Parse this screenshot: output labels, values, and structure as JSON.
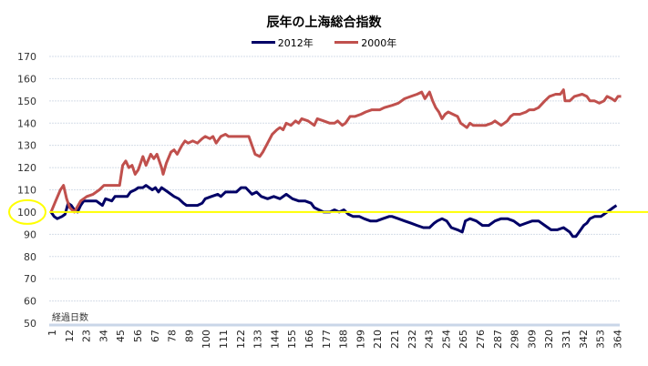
{
  "chart_data": {
    "type": "line",
    "title": "辰年の上海総合指数",
    "xlabel": "経過日数",
    "ylabel": "",
    "ylim": [
      50,
      170
    ],
    "xlim": [
      1,
      367
    ],
    "yticks": [
      170,
      160,
      150,
      140,
      130,
      120,
      110,
      100,
      90,
      80,
      70,
      60,
      50
    ],
    "xticks": [
      1,
      12,
      23,
      34,
      45,
      56,
      67,
      78,
      89,
      100,
      111,
      122,
      133,
      144,
      155,
      166,
      177,
      188,
      199,
      210,
      221,
      232,
      243,
      254,
      265,
      276,
      287,
      298,
      309,
      320,
      331,
      342,
      353,
      364
    ],
    "grid": true,
    "legend_position": "top-center",
    "reference_line": {
      "value": 100,
      "color": "#ffff00",
      "highlighted_tick": "100"
    },
    "series": [
      {
        "name": "2012年",
        "color": "#000066",
        "points": [
          [
            1,
            100
          ],
          [
            3,
            98
          ],
          [
            5,
            97
          ],
          [
            8,
            98
          ],
          [
            10,
            99
          ],
          [
            12,
            104
          ],
          [
            14,
            103
          ],
          [
            16,
            101
          ],
          [
            18,
            100
          ],
          [
            20,
            103
          ],
          [
            22,
            105
          ],
          [
            26,
            105
          ],
          [
            30,
            105
          ],
          [
            34,
            103
          ],
          [
            36,
            106
          ],
          [
            40,
            105
          ],
          [
            42,
            107
          ],
          [
            45,
            107
          ],
          [
            50,
            107
          ],
          [
            52,
            109
          ],
          [
            55,
            110
          ],
          [
            57,
            111
          ],
          [
            60,
            111
          ],
          [
            62,
            112
          ],
          [
            64,
            111
          ],
          [
            66,
            110
          ],
          [
            68,
            111
          ],
          [
            70,
            109
          ],
          [
            72,
            111
          ],
          [
            74,
            110
          ],
          [
            76,
            109
          ],
          [
            80,
            107
          ],
          [
            83,
            106
          ],
          [
            86,
            104
          ],
          [
            88,
            103
          ],
          [
            92,
            103
          ],
          [
            95,
            103
          ],
          [
            98,
            104
          ],
          [
            100,
            106
          ],
          [
            104,
            107
          ],
          [
            108,
            108
          ],
          [
            110,
            107
          ],
          [
            113,
            109
          ],
          [
            116,
            109
          ],
          [
            120,
            109
          ],
          [
            123,
            111
          ],
          [
            126,
            111
          ],
          [
            130,
            108
          ],
          [
            133,
            109
          ],
          [
            136,
            107
          ],
          [
            140,
            106
          ],
          [
            144,
            107
          ],
          [
            148,
            106
          ],
          [
            152,
            108
          ],
          [
            156,
            106
          ],
          [
            160,
            105
          ],
          [
            164,
            105
          ],
          [
            168,
            104
          ],
          [
            170,
            102
          ],
          [
            173,
            101
          ],
          [
            176,
            100
          ],
          [
            180,
            100
          ],
          [
            183,
            101
          ],
          [
            186,
            100
          ],
          [
            189,
            101
          ],
          [
            192,
            99
          ],
          [
            195,
            98
          ],
          [
            199,
            98
          ],
          [
            202,
            97
          ],
          [
            206,
            96
          ],
          [
            210,
            96
          ],
          [
            214,
            97
          ],
          [
            218,
            98
          ],
          [
            220,
            98
          ],
          [
            224,
            97
          ],
          [
            228,
            96
          ],
          [
            232,
            95
          ],
          [
            236,
            94
          ],
          [
            240,
            93
          ],
          [
            244,
            93
          ],
          [
            247,
            95
          ],
          [
            249,
            96
          ],
          [
            252,
            97
          ],
          [
            255,
            96
          ],
          [
            258,
            93
          ],
          [
            262,
            92
          ],
          [
            265,
            91
          ],
          [
            267,
            96
          ],
          [
            270,
            97
          ],
          [
            274,
            96
          ],
          [
            278,
            94
          ],
          [
            282,
            94
          ],
          [
            286,
            96
          ],
          [
            290,
            97
          ],
          [
            294,
            97
          ],
          [
            298,
            96
          ],
          [
            302,
            94
          ],
          [
            306,
            95
          ],
          [
            310,
            96
          ],
          [
            314,
            96
          ],
          [
            318,
            94
          ],
          [
            322,
            92
          ],
          [
            326,
            92
          ],
          [
            330,
            93
          ],
          [
            334,
            91
          ],
          [
            336,
            89
          ],
          [
            338,
            89
          ],
          [
            340,
            91
          ],
          [
            343,
            94
          ],
          [
            345,
            95
          ],
          [
            347,
            97
          ],
          [
            350,
            98
          ],
          [
            354,
            98
          ],
          [
            356,
            99
          ],
          [
            358,
            100
          ],
          [
            360,
            101
          ],
          [
            362,
            102
          ],
          [
            364,
            103
          ]
        ]
      },
      {
        "name": "2000年",
        "color": "#c0504d",
        "points": [
          [
            1,
            100
          ],
          [
            4,
            105
          ],
          [
            7,
            110
          ],
          [
            9,
            112
          ],
          [
            11,
            106
          ],
          [
            13,
            102
          ],
          [
            16,
            100
          ],
          [
            20,
            105
          ],
          [
            24,
            107
          ],
          [
            28,
            108
          ],
          [
            32,
            110
          ],
          [
            35,
            112
          ],
          [
            45,
            112
          ],
          [
            47,
            121
          ],
          [
            49,
            123
          ],
          [
            51,
            120
          ],
          [
            53,
            121
          ],
          [
            55,
            117
          ],
          [
            57,
            119
          ],
          [
            60,
            125
          ],
          [
            62,
            121
          ],
          [
            65,
            126
          ],
          [
            67,
            124
          ],
          [
            69,
            126
          ],
          [
            72,
            120
          ],
          [
            73,
            117
          ],
          [
            75,
            122
          ],
          [
            78,
            127
          ],
          [
            80,
            128
          ],
          [
            82,
            126
          ],
          [
            85,
            130
          ],
          [
            87,
            132
          ],
          [
            89,
            131
          ],
          [
            92,
            132
          ],
          [
            95,
            131
          ],
          [
            98,
            133
          ],
          [
            100,
            134
          ],
          [
            103,
            133
          ],
          [
            105,
            134
          ],
          [
            107,
            131
          ],
          [
            110,
            134
          ],
          [
            113,
            135
          ],
          [
            115,
            134
          ],
          [
            128,
            134
          ],
          [
            130,
            130
          ],
          [
            132,
            126
          ],
          [
            135,
            125
          ],
          [
            137,
            127
          ],
          [
            140,
            131
          ],
          [
            143,
            135
          ],
          [
            146,
            137
          ],
          [
            148,
            138
          ],
          [
            150,
            137
          ],
          [
            152,
            140
          ],
          [
            155,
            139
          ],
          [
            158,
            141
          ],
          [
            160,
            140
          ],
          [
            162,
            142
          ],
          [
            166,
            141
          ],
          [
            170,
            139
          ],
          [
            172,
            142
          ],
          [
            176,
            141
          ],
          [
            180,
            140
          ],
          [
            183,
            140
          ],
          [
            185,
            141
          ],
          [
            188,
            139
          ],
          [
            190,
            140
          ],
          [
            193,
            143
          ],
          [
            196,
            143
          ],
          [
            200,
            144
          ],
          [
            203,
            145
          ],
          [
            207,
            146
          ],
          [
            212,
            146
          ],
          [
            215,
            147
          ],
          [
            220,
            148
          ],
          [
            224,
            149
          ],
          [
            228,
            151
          ],
          [
            232,
            152
          ],
          [
            236,
            153
          ],
          [
            239,
            154
          ],
          [
            241,
            151
          ],
          [
            244,
            154
          ],
          [
            246,
            150
          ],
          [
            248,
            147
          ],
          [
            250,
            145
          ],
          [
            252,
            142
          ],
          [
            254,
            144
          ],
          [
            256,
            145
          ],
          [
            259,
            144
          ],
          [
            262,
            143
          ],
          [
            264,
            140
          ],
          [
            266,
            139
          ],
          [
            268,
            138
          ],
          [
            270,
            140
          ],
          [
            272,
            139
          ],
          [
            276,
            139
          ],
          [
            280,
            139
          ],
          [
            284,
            140
          ],
          [
            286,
            141
          ],
          [
            288,
            140
          ],
          [
            290,
            139
          ],
          [
            292,
            140
          ],
          [
            294,
            141
          ],
          [
            296,
            143
          ],
          [
            298,
            144
          ],
          [
            302,
            144
          ],
          [
            306,
            145
          ],
          [
            308,
            146
          ],
          [
            311,
            146
          ],
          [
            314,
            147
          ],
          [
            318,
            150
          ],
          [
            321,
            152
          ],
          [
            325,
            153
          ],
          [
            328,
            153
          ],
          [
            330,
            155
          ],
          [
            331,
            150
          ],
          [
            334,
            150
          ],
          [
            337,
            152
          ],
          [
            342,
            153
          ],
          [
            345,
            152
          ],
          [
            347,
            150
          ],
          [
            350,
            150
          ],
          [
            353,
            149
          ],
          [
            356,
            150
          ],
          [
            358,
            152
          ],
          [
            361,
            151
          ],
          [
            363,
            150
          ],
          [
            365,
            152
          ],
          [
            367,
            152
          ]
        ]
      }
    ]
  }
}
